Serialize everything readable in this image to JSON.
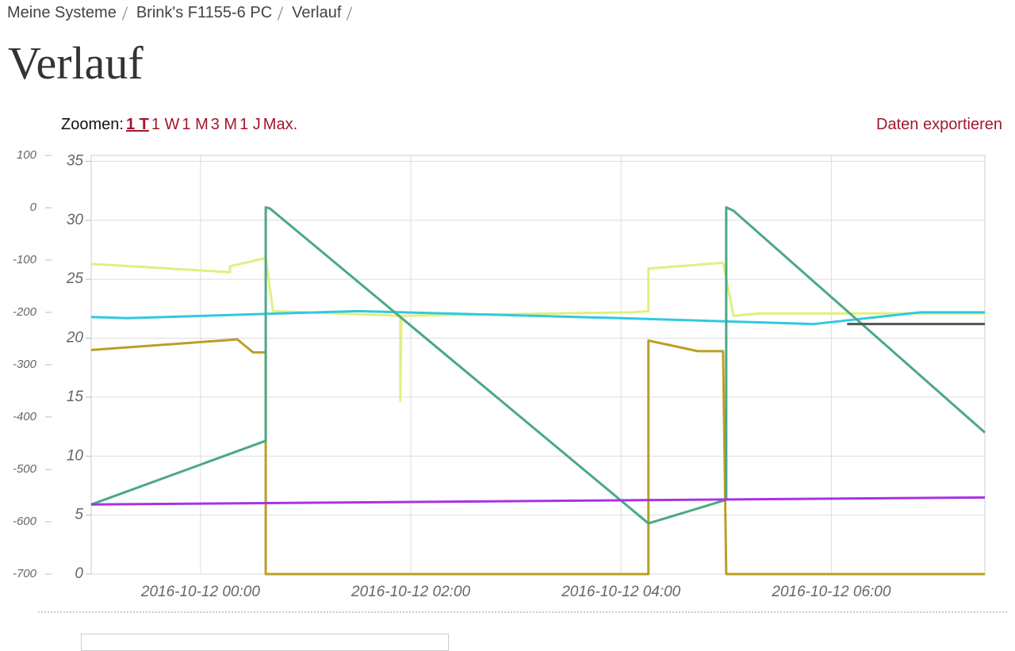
{
  "header": {
    "breadcrumb": [
      "Meine Systeme",
      "Brink's F1155-6 PC",
      "Verlauf"
    ],
    "title": "Verlauf"
  },
  "toolbar": {
    "zoom_label": "Zoomen:",
    "zoom_options": [
      "1 T",
      "1 W",
      "1 M",
      "3 M",
      "1 J",
      "Max."
    ],
    "active": 0,
    "export": "Daten exportieren"
  },
  "chart_data": {
    "type": "line",
    "xlim": [
      -1.04,
      7.46
    ],
    "xticks": [
      {
        "value": 0,
        "label": "2016-10-12 00:00"
      },
      {
        "value": 2,
        "label": "2016-10-12 02:00"
      },
      {
        "value": 4,
        "label": "2016-10-12 04:00"
      },
      {
        "value": 6,
        "label": "2016-10-12 06:00"
      }
    ],
    "ylim": [
      0,
      35.5
    ],
    "yticks": [
      0,
      5,
      10,
      15,
      20,
      25,
      30,
      35
    ],
    "y2lim": [
      -700,
      100
    ],
    "y2ticks": [
      100,
      0,
      -100,
      -200,
      -300,
      -400,
      -500,
      -600,
      -700
    ],
    "grid": true,
    "series": [
      {
        "color": "#e2ef7e",
        "x": [
          -1.04,
          0.28,
          0.28,
          0.62,
          0.69,
          1.9,
          1.9,
          1.91,
          4.11,
          4.26,
          4.26,
          4.97,
          5.07,
          5.32,
          7.46
        ],
        "values": [
          26.3,
          25.6,
          26.1,
          26.8,
          22.3,
          21.9,
          14.7,
          21.9,
          22.2,
          22.3,
          25.9,
          26.4,
          21.9,
          22.1,
          22.1
        ]
      },
      {
        "color": "#2fc9e2",
        "x": [
          -1.04,
          -0.7,
          1.49,
          4.0,
          5.83,
          6.85,
          7.46
        ],
        "values": [
          21.8,
          21.7,
          22.3,
          21.7,
          21.2,
          22.2,
          22.2
        ]
      },
      {
        "color": "#b9a024",
        "x": [
          -1.04,
          0.35,
          0.5,
          0.62,
          0.62,
          4.26,
          4.26,
          4.73,
          4.97,
          5.0,
          7.46
        ],
        "values": [
          19.0,
          19.9,
          18.8,
          18.8,
          0,
          0,
          19.8,
          18.9,
          18.9,
          0,
          0
        ]
      },
      {
        "color": "#4ba886",
        "x": [
          -1.04,
          0.62,
          0.62,
          0.66,
          4.26,
          5.0,
          5.0,
          5.07,
          7.46
        ],
        "values": [
          5.9,
          11.3,
          31.1,
          31.0,
          4.3,
          6.3,
          31.1,
          30.8,
          12.0
        ]
      },
      {
        "color": "#a733e4",
        "x": [
          -1.04,
          7.46
        ],
        "values": [
          5.9,
          6.5
        ]
      },
      {
        "color": "#555555",
        "x": [
          6.15,
          7.46
        ],
        "values": [
          21.2,
          21.2
        ]
      }
    ]
  }
}
